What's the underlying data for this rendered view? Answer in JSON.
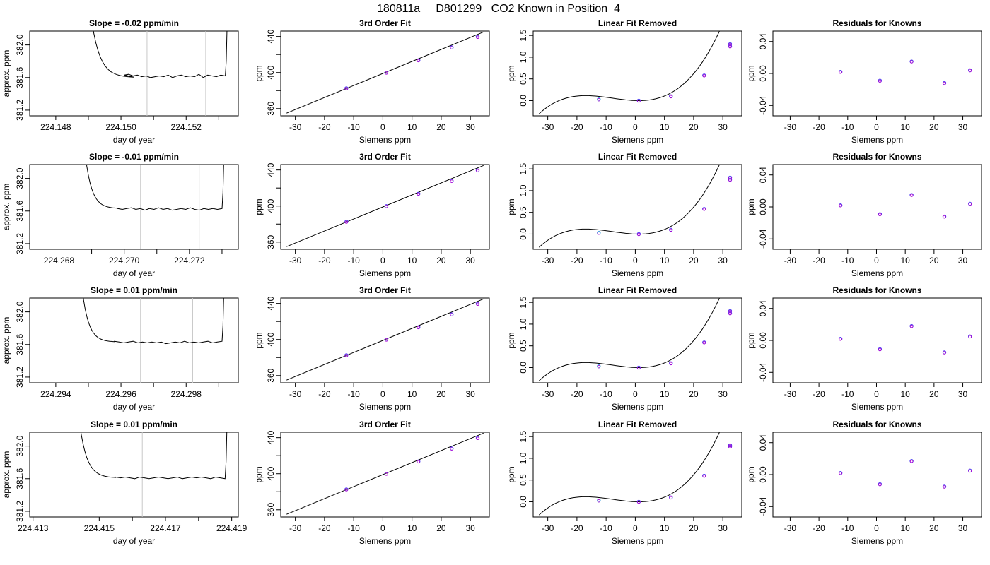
{
  "title": "180811a     D801299   CO2 Known in Position  4",
  "chart_data": [
    {
      "type": "line",
      "title": "Slope =  -0.02  ppm/min",
      "xlabel": "day of year",
      "ylabel": "approx. ppm",
      "xlim": [
        224.1472,
        224.1536
      ],
      "ylim": [
        381.13,
        382.17
      ],
      "xticks": [
        "224.148",
        "224.150",
        "224.152"
      ],
      "xtick_values": [
        224.148,
        224.15,
        224.152
      ],
      "xminor": [
        224.149,
        224.151,
        224.153
      ],
      "yticks": [
        "381.2",
        "381.6",
        "382.0"
      ],
      "ytick_values": [
        381.2,
        381.6,
        382.0
      ],
      "window": [
        224.1508,
        224.1526
      ],
      "trace": {
        "start": 224.1491,
        "rise_end": 224.1504,
        "flat_start": 224.1501,
        "end": 224.1532,
        "high": 382.3,
        "plateau": 381.6,
        "pts": [
          381.63,
          381.64,
          381.62,
          381.63,
          381.61,
          381.62,
          381.6,
          381.61,
          381.62,
          381.61,
          381.63,
          381.6,
          381.62,
          381.63,
          381.61,
          381.62,
          381.61,
          381.64,
          381.6,
          381.63,
          381.62,
          381.61,
          381.63,
          381.62
        ]
      }
    },
    {
      "type": "line",
      "title": "3rd Order Fit",
      "xlabel": "Siemens ppm",
      "ylabel": "ppm",
      "xlim": [
        -35,
        36.5
      ],
      "ylim": [
        352,
        446
      ],
      "xticks": [
        "-30",
        "-20",
        "-10",
        "0",
        "10",
        "20",
        "30"
      ],
      "xtick_values": [
        -30,
        -20,
        -10,
        0,
        10,
        20,
        30
      ],
      "yticks": [
        "360",
        "400",
        "440"
      ],
      "ytick_values": [
        360,
        400,
        440
      ],
      "yminor": [
        380,
        420
      ],
      "line": [
        [
          -33,
          355
        ],
        [
          34.5,
          445
        ]
      ],
      "points": [
        [
          -12.5,
          382.6
        ],
        [
          1.2,
          399.9
        ],
        [
          12.2,
          413.6
        ],
        [
          23.6,
          427.9
        ],
        [
          32.5,
          439.6
        ]
      ]
    },
    {
      "type": "scatter",
      "title": "Linear Fit Removed",
      "xlabel": "Siemens ppm",
      "ylabel": "ppm",
      "xlim": [
        -35,
        36.5
      ],
      "ylim": [
        -0.35,
        1.6
      ],
      "xticks": [
        "-30",
        "-20",
        "-10",
        "0",
        "10",
        "20",
        "30"
      ],
      "xtick_values": [
        -30,
        -20,
        -10,
        0,
        10,
        20,
        30
      ],
      "yticks": [
        "0.0",
        "0.5",
        "1.0",
        "1.5"
      ],
      "ytick_values": [
        0,
        0.5,
        1.0,
        1.5
      ],
      "curve_fn": "linfit",
      "points": [
        [
          -12.5,
          0.03
        ],
        [
          1.2,
          0.0
        ],
        [
          12.2,
          0.1
        ],
        [
          23.6,
          0.58
        ],
        [
          32.5,
          1.25
        ],
        [
          32.5,
          1.3
        ]
      ]
    },
    {
      "type": "scatter",
      "title": "Residuals for Knowns",
      "xlabel": "Siemens ppm",
      "ylabel": "ppm",
      "xlim": [
        -36,
        36.5
      ],
      "ylim": [
        -0.053,
        0.053
      ],
      "xticks": [
        "-30",
        "-20",
        "-10",
        "0",
        "10",
        "20",
        "30"
      ],
      "xtick_values": [
        -30,
        -20,
        -10,
        0,
        10,
        20,
        30
      ],
      "yticks": [
        "-0.04",
        "0.00",
        "0.04"
      ],
      "ytick_values": [
        -0.04,
        0.0,
        0.04
      ],
      "points": [
        [
          -12.5,
          0.002
        ],
        [
          1.2,
          -0.009
        ],
        [
          12.2,
          0.015
        ],
        [
          23.6,
          -0.012
        ],
        [
          32.5,
          0.004
        ]
      ]
    },
    {
      "type": "line",
      "title": "Slope =  -0.01  ppm/min",
      "xlabel": "day of year",
      "ylabel": "approx. ppm",
      "xlim": [
        224.2671,
        224.2735
      ],
      "ylim": [
        381.13,
        382.17
      ],
      "xticks": [
        "224.268",
        "224.270",
        "224.272"
      ],
      "xtick_values": [
        224.268,
        224.27,
        224.272
      ],
      "xminor": [
        224.269,
        224.271,
        224.273
      ],
      "yticks": [
        "381.2",
        "381.6",
        "382.0"
      ],
      "ytick_values": [
        381.2,
        381.6,
        382.0
      ],
      "window": [
        224.2705,
        224.2723
      ],
      "trace": {
        "start": 224.2688,
        "rise_end": 224.2698,
        "flat_start": 224.2698,
        "end": 224.273,
        "high": 382.3,
        "plateau": 381.63,
        "pts": [
          381.63,
          381.62,
          381.63,
          381.64,
          381.62,
          381.63,
          381.61,
          381.63,
          381.62,
          381.64,
          381.62,
          381.63,
          381.61,
          381.62,
          381.63,
          381.62,
          381.64,
          381.62,
          381.61,
          381.63,
          381.62,
          381.63,
          381.62,
          381.63
        ]
      }
    },
    {
      "type": "line",
      "title": "3rd Order Fit",
      "xlabel": "Siemens ppm",
      "ylabel": "ppm",
      "xlim": [
        -35,
        36.5
      ],
      "ylim": [
        352,
        446
      ],
      "xticks": [
        "-30",
        "-20",
        "-10",
        "0",
        "10",
        "20",
        "30"
      ],
      "xtick_values": [
        -30,
        -20,
        -10,
        0,
        10,
        20,
        30
      ],
      "yticks": [
        "360",
        "400",
        "440"
      ],
      "ytick_values": [
        360,
        400,
        440
      ],
      "yminor": [
        380,
        420
      ],
      "line": [
        [
          -33,
          355
        ],
        [
          34.5,
          445
        ]
      ],
      "points": [
        [
          -12.5,
          382.6
        ],
        [
          1.2,
          399.9
        ],
        [
          12.2,
          413.6
        ],
        [
          23.6,
          427.9
        ],
        [
          32.5,
          439.6
        ]
      ]
    },
    {
      "type": "scatter",
      "title": "Linear Fit Removed",
      "xlabel": "Siemens ppm",
      "ylabel": "ppm",
      "xlim": [
        -35,
        36.5
      ],
      "ylim": [
        -0.35,
        1.6
      ],
      "xticks": [
        "-30",
        "-20",
        "-10",
        "0",
        "10",
        "20",
        "30"
      ],
      "xtick_values": [
        -30,
        -20,
        -10,
        0,
        10,
        20,
        30
      ],
      "yticks": [
        "0.0",
        "0.5",
        "1.0",
        "1.5"
      ],
      "ytick_values": [
        0,
        0.5,
        1.0,
        1.5
      ],
      "curve_fn": "linfit",
      "points": [
        [
          -12.5,
          0.03
        ],
        [
          1.2,
          0.0
        ],
        [
          12.2,
          0.1
        ],
        [
          23.6,
          0.58
        ],
        [
          32.5,
          1.25
        ],
        [
          32.5,
          1.3
        ]
      ]
    },
    {
      "type": "scatter",
      "title": "Residuals for Knowns",
      "xlabel": "Siemens ppm",
      "ylabel": "ppm",
      "xlim": [
        -36,
        36.5
      ],
      "ylim": [
        -0.053,
        0.053
      ],
      "xticks": [
        "-30",
        "-20",
        "-10",
        "0",
        "10",
        "20",
        "30"
      ],
      "xtick_values": [
        -30,
        -20,
        -10,
        0,
        10,
        20,
        30
      ],
      "yticks": [
        "-0.04",
        "0.00",
        "0.04"
      ],
      "ytick_values": [
        -0.04,
        0.0,
        0.04
      ],
      "points": [
        [
          -12.5,
          0.002
        ],
        [
          1.2,
          -0.009
        ],
        [
          12.2,
          0.015
        ],
        [
          23.6,
          -0.012
        ],
        [
          32.5,
          0.004
        ]
      ]
    },
    {
      "type": "line",
      "title": "Slope =  0.01  ppm/min",
      "xlabel": "day of year",
      "ylabel": "approx. ppm",
      "xlim": [
        224.2932,
        224.2996
      ],
      "ylim": [
        381.13,
        382.17
      ],
      "xticks": [
        "224.294",
        "224.296",
        "224.298"
      ],
      "xtick_values": [
        224.294,
        224.296,
        224.298
      ],
      "xminor": [
        224.295,
        224.297,
        224.299
      ],
      "yticks": [
        "381.2",
        "381.6",
        "382.0"
      ],
      "ytick_values": [
        381.2,
        381.6,
        382.0
      ],
      "window": [
        224.2966,
        224.2982
      ],
      "trace": {
        "start": 224.2948,
        "rise_end": 224.2958,
        "flat_start": 224.2958,
        "end": 224.2991,
        "high": 382.3,
        "plateau": 381.63,
        "pts": [
          381.64,
          381.63,
          381.62,
          381.63,
          381.64,
          381.62,
          381.63,
          381.62,
          381.63,
          381.62,
          381.63,
          381.61,
          381.62,
          381.63,
          381.62,
          381.64,
          381.62,
          381.63,
          381.62,
          381.63,
          381.64,
          381.62,
          381.63,
          381.64
        ]
      }
    },
    {
      "type": "line",
      "title": "3rd Order Fit",
      "xlabel": "Siemens ppm",
      "ylabel": "ppm",
      "xlim": [
        -35,
        36.5
      ],
      "ylim": [
        352,
        446
      ],
      "xticks": [
        "-30",
        "-20",
        "-10",
        "0",
        "10",
        "20",
        "30"
      ],
      "xtick_values": [
        -30,
        -20,
        -10,
        0,
        10,
        20,
        30
      ],
      "yticks": [
        "360",
        "400",
        "440"
      ],
      "ytick_values": [
        360,
        400,
        440
      ],
      "yminor": [
        380,
        420
      ],
      "line": [
        [
          -33,
          355
        ],
        [
          34.5,
          445
        ]
      ],
      "points": [
        [
          -12.5,
          382.6
        ],
        [
          1.2,
          399.9
        ],
        [
          12.2,
          413.6
        ],
        [
          23.6,
          427.9
        ],
        [
          32.5,
          439.6
        ]
      ]
    },
    {
      "type": "scatter",
      "title": "Linear Fit Removed",
      "xlabel": "Siemens ppm",
      "ylabel": "ppm",
      "xlim": [
        -35,
        36.5
      ],
      "ylim": [
        -0.35,
        1.6
      ],
      "xticks": [
        "-30",
        "-20",
        "-10",
        "0",
        "10",
        "20",
        "30"
      ],
      "xtick_values": [
        -30,
        -20,
        -10,
        0,
        10,
        20,
        30
      ],
      "yticks": [
        "0.0",
        "0.5",
        "1.0",
        "1.5"
      ],
      "ytick_values": [
        0,
        0.5,
        1.0,
        1.5
      ],
      "curve_fn": "linfit",
      "points": [
        [
          -12.5,
          0.03
        ],
        [
          1.2,
          0.0
        ],
        [
          12.2,
          0.1
        ],
        [
          23.6,
          0.58
        ],
        [
          32.5,
          1.25
        ],
        [
          32.5,
          1.3
        ]
      ]
    },
    {
      "type": "scatter",
      "title": "Residuals for Knowns",
      "xlabel": "Siemens ppm",
      "ylabel": "ppm",
      "xlim": [
        -36,
        36.5
      ],
      "ylim": [
        -0.053,
        0.053
      ],
      "xticks": [
        "-30",
        "-20",
        "-10",
        "0",
        "10",
        "20",
        "30"
      ],
      "xtick_values": [
        -30,
        -20,
        -10,
        0,
        10,
        20,
        30
      ],
      "yticks": [
        "-0.04",
        "0.00",
        "0.04"
      ],
      "ytick_values": [
        -0.04,
        0.0,
        0.04
      ],
      "points": [
        [
          -12.5,
          0.002
        ],
        [
          1.2,
          -0.011
        ],
        [
          12.2,
          0.018
        ],
        [
          23.6,
          -0.015
        ],
        [
          32.5,
          0.005
        ]
      ]
    },
    {
      "type": "line",
      "title": "Slope =  0.01  ppm/min",
      "xlabel": "day of year",
      "ylabel": "approx. ppm",
      "xlim": [
        224.4129,
        224.4192
      ],
      "ylim": [
        381.13,
        382.17
      ],
      "xticks": [
        "224.413",
        "224.415",
        "224.417",
        "224.419"
      ],
      "xtick_values": [
        224.413,
        224.415,
        224.417,
        224.419
      ],
      "xminor": [
        224.414,
        224.416,
        224.418
      ],
      "yticks": [
        "381.2",
        "381.6",
        "382.0"
      ],
      "ytick_values": [
        381.2,
        381.6,
        382.0
      ],
      "window": [
        224.4163,
        224.4181
      ],
      "trace": {
        "start": 224.4144,
        "rise_end": 224.4155,
        "flat_start": 224.4155,
        "end": 224.4188,
        "high": 382.3,
        "plateau": 381.61,
        "pts": [
          381.62,
          381.61,
          381.62,
          381.61,
          381.6,
          381.62,
          381.61,
          381.6,
          381.61,
          381.62,
          381.61,
          381.6,
          381.61,
          381.62,
          381.6,
          381.61,
          381.62,
          381.61,
          381.62,
          381.61,
          381.6,
          381.62,
          381.61,
          381.6
        ]
      }
    },
    {
      "type": "line",
      "title": "3rd Order Fit",
      "xlabel": "Siemens ppm",
      "ylabel": "ppm",
      "xlim": [
        -35,
        36.5
      ],
      "ylim": [
        352,
        446
      ],
      "xticks": [
        "-30",
        "-20",
        "-10",
        "0",
        "10",
        "20",
        "30"
      ],
      "xtick_values": [
        -30,
        -20,
        -10,
        0,
        10,
        20,
        30
      ],
      "yticks": [
        "360",
        "400",
        "440"
      ],
      "ytick_values": [
        360,
        400,
        440
      ],
      "yminor": [
        380,
        420
      ],
      "line": [
        [
          -33,
          355
        ],
        [
          34.5,
          445
        ]
      ],
      "points": [
        [
          -12.5,
          382.6
        ],
        [
          1.2,
          399.9
        ],
        [
          12.2,
          413.6
        ],
        [
          23.6,
          427.9
        ],
        [
          32.5,
          439.6
        ]
      ]
    },
    {
      "type": "scatter",
      "title": "Linear Fit Removed",
      "xlabel": "Siemens ppm",
      "ylabel": "ppm",
      "xlim": [
        -35,
        36.5
      ],
      "ylim": [
        -0.35,
        1.6
      ],
      "xticks": [
        "-30",
        "-20",
        "-10",
        "0",
        "10",
        "20",
        "30"
      ],
      "xtick_values": [
        -30,
        -20,
        -10,
        0,
        10,
        20,
        30
      ],
      "yticks": [
        "0.0",
        "0.5",
        "1.0",
        "1.5"
      ],
      "ytick_values": [
        0,
        0.5,
        1.0,
        1.5
      ],
      "curve_fn": "linfit",
      "points": [
        [
          -12.5,
          0.03
        ],
        [
          1.2,
          0.0
        ],
        [
          12.2,
          0.1
        ],
        [
          23.6,
          0.6
        ],
        [
          32.5,
          1.27
        ],
        [
          32.5,
          1.3
        ]
      ]
    },
    {
      "type": "scatter",
      "title": "Residuals for Knowns",
      "xlabel": "Siemens ppm",
      "ylabel": "ppm",
      "xlim": [
        -36,
        36.5
      ],
      "ylim": [
        -0.053,
        0.053
      ],
      "xticks": [
        "-30",
        "-20",
        "-10",
        "0",
        "10",
        "20",
        "30"
      ],
      "xtick_values": [
        -30,
        -20,
        -10,
        0,
        10,
        20,
        30
      ],
      "yticks": [
        "-0.04",
        "0.00",
        "0.04"
      ],
      "ytick_values": [
        -0.04,
        0.0,
        0.04
      ],
      "points": [
        [
          -12.5,
          0.002
        ],
        [
          1.2,
          -0.012
        ],
        [
          12.2,
          0.017
        ],
        [
          23.6,
          -0.015
        ],
        [
          32.5,
          0.005
        ]
      ]
    }
  ],
  "colors": {
    "axis": "#000000",
    "window_line": "#c8c8c8",
    "point_outer": "#4b3cf0",
    "point_inner": "#b400d0",
    "point_light": "#3fa0e0",
    "pink": "#e24a90"
  }
}
